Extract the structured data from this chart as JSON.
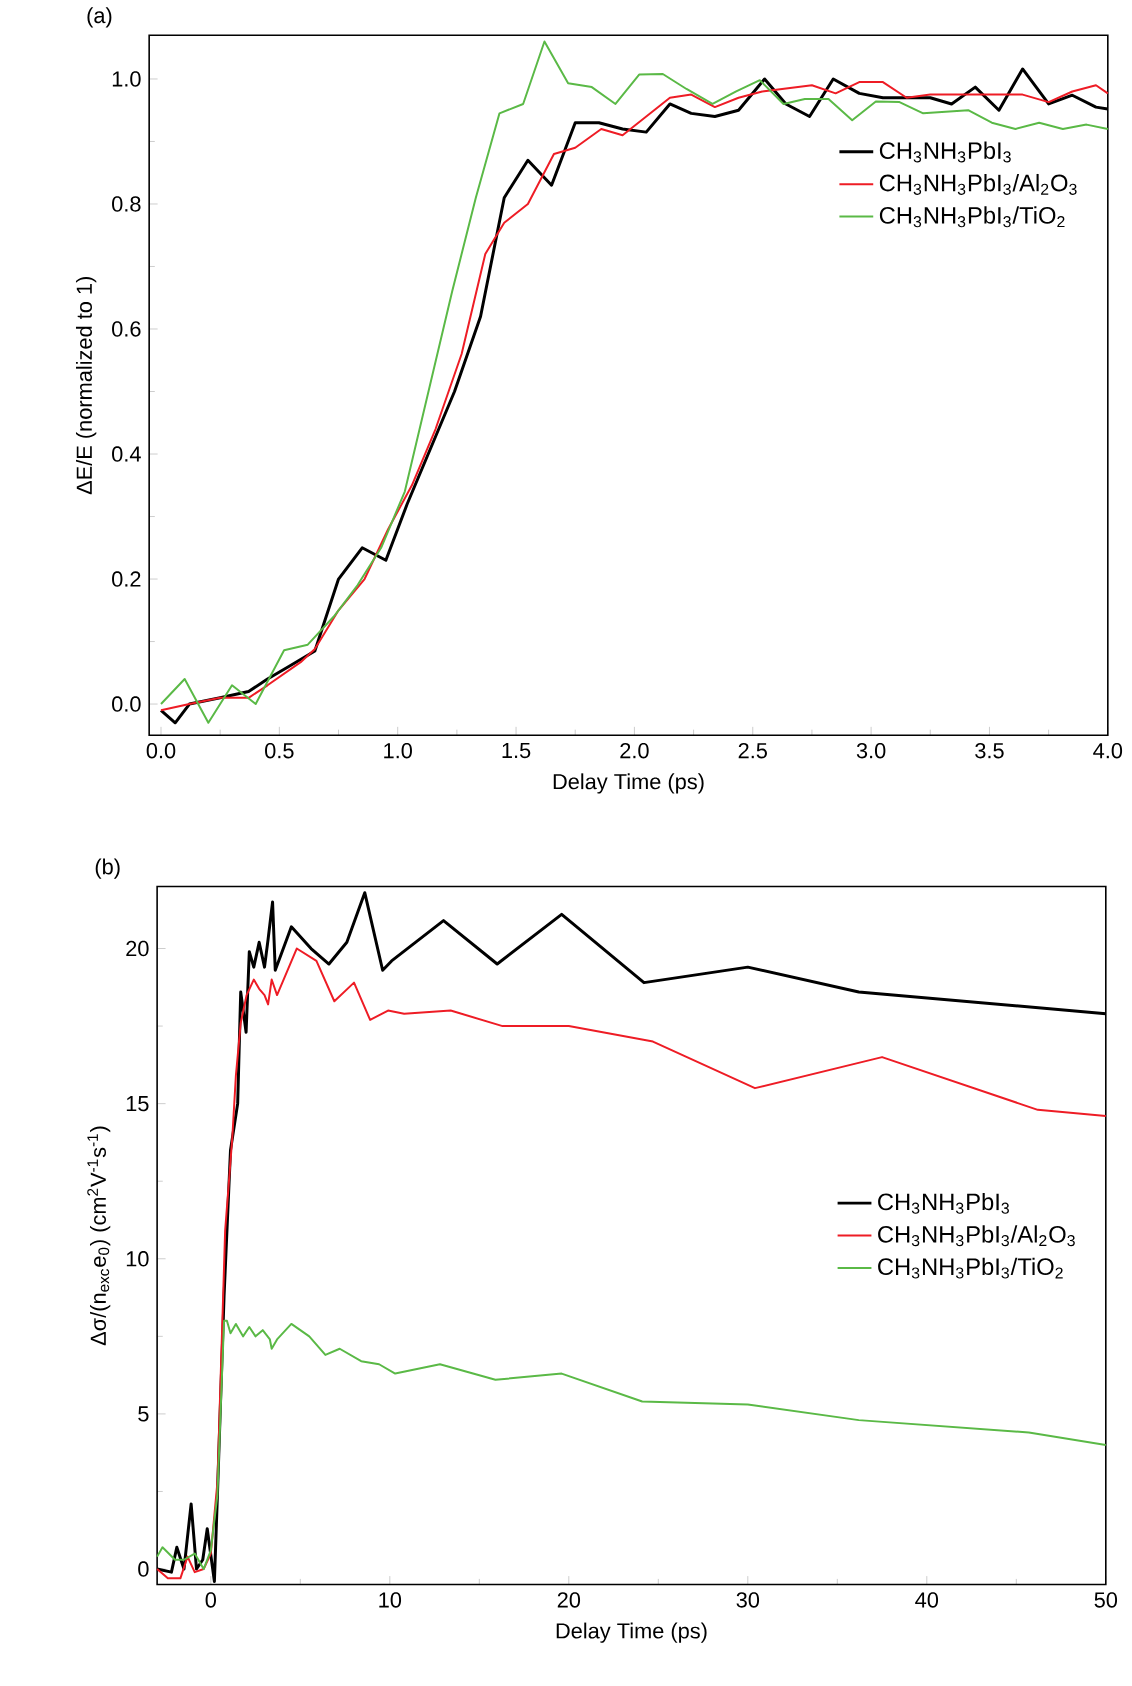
{
  "chart_data": [
    {
      "type": "line",
      "annotations": [
        "(a)"
      ],
      "xlabel": "Delay Time (ps)",
      "ylabel": "ΔE/E (normalized to 1)",
      "xlim": [
        -0.05,
        4.0
      ],
      "ylim": [
        -0.05,
        1.07
      ],
      "xticks": [
        {
          "value": 0,
          "label": "0.0"
        },
        0.5,
        {
          "value": 1,
          "label": "1.0"
        },
        1.5,
        {
          "value": 2,
          "label": "2.0"
        },
        2.5,
        {
          "value": 3,
          "label": "3.0"
        },
        3.5,
        {
          "value": 4,
          "label": "4.0"
        }
      ],
      "yticks": [
        {
          "value": 0,
          "label": "0.0"
        },
        0.2,
        0.4,
        0.6,
        0.8,
        {
          "value": 1,
          "label": "1.0"
        }
      ],
      "legend": "top right",
      "grid": false,
      "marker": "none",
      "line_style": "solid",
      "series": [
        {
          "name": "CH$_{3}$NH$_{3}$PbI$_{3}$",
          "color": "#000000",
          "x": [
            0,
            0.06,
            0.12,
            0.25,
            0.37,
            0.45,
            0.54,
            0.65,
            0.75,
            0.85,
            0.95,
            1.04,
            1.24,
            1.35,
            1.45,
            1.55,
            1.65,
            1.75,
            1.85,
            1.95,
            2.05,
            2.15,
            2.24,
            2.34,
            2.44,
            2.55,
            2.64,
            2.74,
            2.84,
            2.95,
            3.05,
            3.25,
            3.34,
            3.44,
            3.54,
            3.64,
            3.75,
            3.85,
            3.95,
            4.0
          ],
          "values": [
            -0.01,
            -0.03,
            0.0,
            0.01,
            0.02,
            0.04,
            0.06,
            0.085,
            0.2,
            0.25,
            0.23,
            0.32,
            0.5,
            0.62,
            0.81,
            0.87,
            0.83,
            0.93,
            0.93,
            0.92,
            0.915,
            0.96,
            0.945,
            0.94,
            0.95,
            1.0,
            0.96,
            0.94,
            1.0,
            0.977,
            0.97,
            0.97,
            0.96,
            0.987,
            0.95,
            1.016,
            0.96,
            0.974,
            0.955,
            0.952
          ]
        },
        {
          "name": "CH$_{3}$NH$_{3}$PbI$_{3}$/Al$_{2}$O$_{3}$",
          "color": "#ee1c25",
          "x": [
            0,
            0.12,
            0.25,
            0.37,
            0.45,
            0.59,
            0.65,
            0.75,
            0.86,
            0.96,
            1.06,
            1.16,
            1.27,
            1.37,
            1.45,
            1.55,
            1.66,
            1.75,
            1.86,
            1.95,
            2.05,
            2.15,
            2.24,
            2.34,
            2.44,
            2.54,
            2.75,
            2.85,
            2.95,
            3.05,
            3.15,
            3.25,
            3.44,
            3.54,
            3.64,
            3.75,
            3.85,
            3.95,
            4.0
          ],
          "values": [
            -0.01,
            0.0,
            0.01,
            0.01,
            0.03,
            0.067,
            0.088,
            0.15,
            0.2,
            0.28,
            0.35,
            0.44,
            0.56,
            0.72,
            0.77,
            0.8,
            0.88,
            0.89,
            0.92,
            0.91,
            0.94,
            0.97,
            0.975,
            0.955,
            0.97,
            0.98,
            0.99,
            0.977,
            0.995,
            0.995,
            0.97,
            0.975,
            0.975,
            0.975,
            0.975,
            0.963,
            0.98,
            0.99,
            0.977
          ]
        },
        {
          "name": "CH$_{3}$NH$_{3}$PbI$_{3}$/TiO$_{2}$",
          "color": "#5ab946",
          "x": [
            0,
            0.1,
            0.2,
            0.3,
            0.4,
            0.52,
            0.62,
            0.73,
            0.83,
            0.93,
            1.03,
            1.13,
            1.23,
            1.33,
            1.43,
            1.53,
            1.62,
            1.72,
            1.82,
            1.92,
            2.02,
            2.12,
            2.22,
            2.33,
            2.43,
            2.53,
            2.63,
            2.72,
            2.82,
            2.92,
            3.02,
            3.12,
            3.22,
            3.41,
            3.51,
            3.61,
            3.71,
            3.81,
            3.91,
            4.0
          ],
          "values": [
            0.0,
            0.04,
            -0.03,
            0.03,
            0.0,
            0.086,
            0.095,
            0.14,
            0.19,
            0.25,
            0.34,
            0.5,
            0.66,
            0.81,
            0.945,
            0.96,
            1.06,
            0.993,
            0.987,
            0.96,
            1.007,
            1.008,
            0.984,
            0.96,
            0.98,
            0.998,
            0.96,
            0.968,
            0.968,
            0.934,
            0.964,
            0.963,
            0.945,
            0.95,
            0.93,
            0.92,
            0.93,
            0.92,
            0.927,
            0.92
          ]
        }
      ]
    },
    {
      "type": "line",
      "annotations": [
        "(b)"
      ],
      "xlabel": "Delay Time (ps)",
      "ylabel": "Δσ/(n$_{exc}$e$_{0}$)  (cm$^{2}$V$^{-1}$s$^{-1}$)",
      "xlim": [
        -3,
        50
      ],
      "ylim": [
        -0.5,
        22
      ],
      "xticks": [
        0,
        10,
        20,
        30,
        40,
        50
      ],
      "yticks": [
        0,
        5,
        10,
        15,
        20
      ],
      "legend": "right",
      "grid": false,
      "marker": "none",
      "line_style": "solid",
      "series": [
        {
          "name": "CH$_{3}$NH$_{3}$PbI$_{3}$",
          "color": "#000000",
          "x": [
            -3,
            -2.2,
            -1.9,
            -1.5,
            -1.1,
            -0.8,
            -0.45,
            -0.2,
            0.2,
            0.37,
            0.74,
            1.1,
            1.5,
            1.67,
            1.97,
            2.15,
            2.4,
            2.7,
            3.0,
            3.2,
            3.45,
            3.6,
            4.5,
            5.6,
            6.6,
            7.6,
            8.6,
            9.6,
            10.1,
            13.0,
            16.0,
            19.6,
            24.2,
            30,
            36.2,
            50
          ],
          "values": [
            0.0,
            -0.1,
            0.7,
            0,
            2.1,
            0,
            0.3,
            1.3,
            -0.4,
            2.4,
            8.8,
            13.5,
            15,
            18.6,
            17.3,
            19.9,
            19.4,
            20.2,
            19.4,
            20.3,
            21.5,
            19.3,
            20.7,
            20.0,
            19.5,
            20.2,
            21.8,
            19.3,
            19.6,
            20.9,
            19.5,
            21.1,
            18.9,
            19.4,
            18.6,
            17.9
          ]
        },
        {
          "name": "CH$_{3}$NH$_{3}$PbI$_{3}$/Al$_{2}$O$_{3}$",
          "color": "#ee1c25",
          "x": [
            -3,
            -2.4,
            -1.7,
            -1.3,
            -0.9,
            -0.4,
            0,
            0.37,
            0.8,
            1.2,
            1.4,
            1.67,
            2.0,
            2.4,
            2.7,
            3.0,
            3.2,
            3.4,
            3.7,
            4.8,
            5.9,
            6.9,
            8.0,
            8.9,
            9.9,
            10.8,
            13.4,
            16.3,
            20,
            24.7,
            30.4,
            37.5,
            46.2,
            50
          ],
          "values": [
            0.0,
            -0.3,
            -0.3,
            0.4,
            -0.1,
            0,
            0.5,
            2.8,
            10.9,
            13.9,
            15.9,
            17.6,
            18.5,
            19.0,
            18.7,
            18.5,
            18.2,
            19.0,
            18.5,
            20.0,
            19.6,
            18.3,
            18.9,
            17.7,
            18.0,
            17.9,
            18.0,
            17.5,
            17.5,
            17.0,
            15.5,
            16.5,
            14.8,
            14.6
          ]
        },
        {
          "name": "CH$_{3}$NH$_{3}$PbI$_{3}$/TiO$_{2}$",
          "color": "#5ab946",
          "x": [
            -3,
            -2.7,
            -2.0,
            -1.5,
            -0.9,
            -0.4,
            0,
            0.37,
            0.74,
            0.9,
            1.1,
            1.4,
            1.8,
            2.15,
            2.5,
            2.9,
            3.3,
            3.4,
            3.7,
            4.5,
            5.5,
            6.4,
            7.2,
            8.4,
            9.4,
            10.3,
            12.8,
            15.9,
            19.6,
            24.1,
            30,
            36.2,
            45.7,
            50
          ],
          "values": [
            0.4,
            0.7,
            0.3,
            0.3,
            0.5,
            0.0,
            0.6,
            2.4,
            8.0,
            8.0,
            7.6,
            7.9,
            7.5,
            7.8,
            7.5,
            7.7,
            7.4,
            7.1,
            7.4,
            7.9,
            7.5,
            6.9,
            7.1,
            6.7,
            6.6,
            6.3,
            6.6,
            6.1,
            6.3,
            5.4,
            5.3,
            4.8,
            4.4,
            4.0
          ]
        }
      ]
    }
  ]
}
